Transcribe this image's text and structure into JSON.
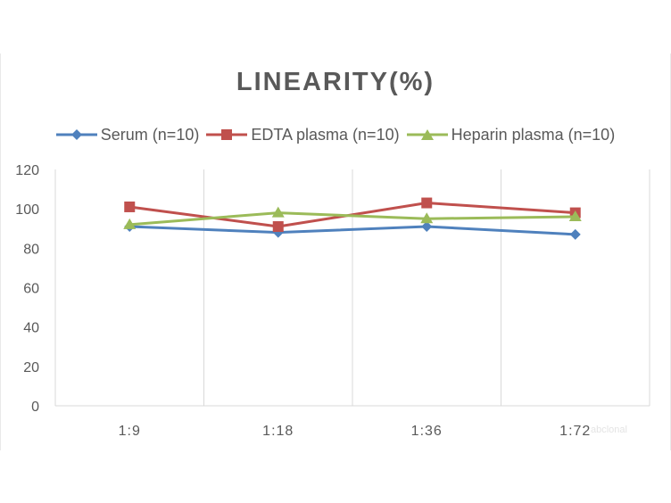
{
  "chart_data": {
    "type": "line",
    "title": "LINEARITY(%)",
    "categories": [
      "1:9",
      "1:18",
      "1:36",
      "1:72"
    ],
    "series": [
      {
        "name": "Serum (n=10)",
        "color": "#4F81BD",
        "marker": "diamond",
        "values": [
          91,
          88,
          91,
          87
        ]
      },
      {
        "name": "EDTA plasma (n=10)",
        "color": "#C0504D",
        "marker": "square",
        "values": [
          101,
          91,
          103,
          98
        ]
      },
      {
        "name": "Heparin plasma (n=10)",
        "color": "#9BBB59",
        "marker": "triangle",
        "values": [
          92,
          98,
          95,
          96
        ]
      }
    ],
    "ylim": [
      0,
      120
    ],
    "yticks": [
      0,
      20,
      40,
      60,
      80,
      100,
      120
    ],
    "grid": "vertical",
    "legend_position": "top"
  },
  "watermark": "abclonal"
}
